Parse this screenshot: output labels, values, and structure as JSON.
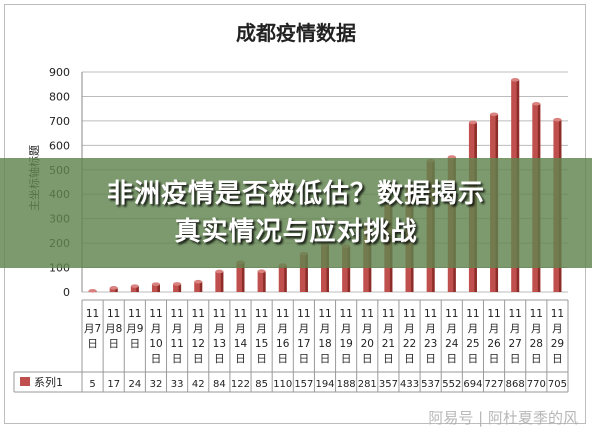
{
  "banner": {
    "line1": "非洲疫情是否被低估？数据揭示",
    "line2": "真实情况与应对挑战"
  },
  "watermark": "阿易号 | 阿杜夏季的风",
  "colors": {
    "bar": "#c0504d",
    "bar_dark": "#8c2d2a",
    "grid": "#bcbcbc",
    "text": "#222222"
  },
  "chart_data": {
    "type": "bar",
    "title": "成都疫情数据",
    "ylabel": "主坐标轴标题",
    "xlabel": "",
    "ylim": [
      0,
      900
    ],
    "yticks": [
      0,
      100,
      200,
      300,
      400,
      500,
      600,
      700,
      800,
      900
    ],
    "categories": [
      "11月7日",
      "11月8日",
      "11月9日",
      "11月10日",
      "11月11日",
      "11月12日",
      "11月13日",
      "11月14日",
      "11月15日",
      "11月16日",
      "11月17日",
      "11月18日",
      "11月19日",
      "11月20日",
      "11月21日",
      "11月22日",
      "11月23日",
      "11月24日",
      "11月25日",
      "11月26日",
      "11月27日",
      "11月28日",
      "11月29日"
    ],
    "category_lines": [
      [
        "11",
        "月7",
        "日"
      ],
      [
        "11",
        "月8",
        "日"
      ],
      [
        "11",
        "月9",
        "日"
      ],
      [
        "11",
        "月",
        "10",
        "日"
      ],
      [
        "11",
        "月",
        "11",
        "日"
      ],
      [
        "11",
        "月",
        "12",
        "日"
      ],
      [
        "11",
        "月",
        "13",
        "日"
      ],
      [
        "11",
        "月",
        "14",
        "日"
      ],
      [
        "11",
        "月",
        "15",
        "日"
      ],
      [
        "11",
        "月",
        "16",
        "日"
      ],
      [
        "11",
        "月",
        "17",
        "日"
      ],
      [
        "11",
        "月",
        "18",
        "日"
      ],
      [
        "11",
        "月",
        "19",
        "日"
      ],
      [
        "11",
        "月",
        "20",
        "日"
      ],
      [
        "11",
        "月",
        "21",
        "日"
      ],
      [
        "11",
        "月",
        "22",
        "日"
      ],
      [
        "11",
        "月",
        "23",
        "日"
      ],
      [
        "11",
        "月",
        "24",
        "日"
      ],
      [
        "11",
        "月",
        "25",
        "日"
      ],
      [
        "11",
        "月",
        "26",
        "日"
      ],
      [
        "11",
        "月",
        "27",
        "日"
      ],
      [
        "11",
        "月",
        "28",
        "日"
      ],
      [
        "11",
        "月",
        "29",
        "日"
      ]
    ],
    "series": [
      {
        "name": "系列1",
        "values": [
          5,
          17,
          24,
          32,
          33,
          42,
          84,
          122,
          85,
          110,
          157,
          194,
          188,
          281,
          357,
          433,
          537,
          552,
          694,
          727,
          868,
          770,
          705
        ]
      }
    ],
    "grid": true,
    "legend": "bottom-left (in data table)"
  }
}
